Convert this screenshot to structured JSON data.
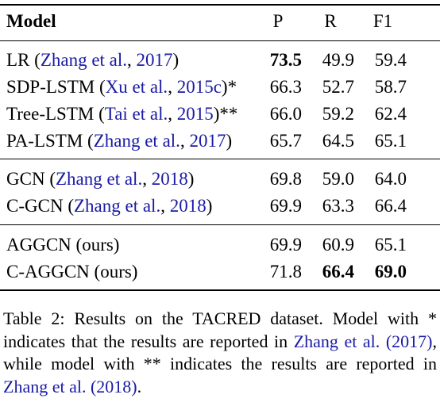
{
  "table": {
    "headers": {
      "model": "Model",
      "p": "P",
      "r": "R",
      "f1": "F1"
    },
    "rows": [
      {
        "name": "LR",
        "cite_open": " (",
        "cite_author": "Zhang et al.",
        "cite_sep": ", ",
        "cite_year": "2017",
        "cite_close": ")",
        "p": "73.5",
        "r": "49.9",
        "f1": "59.4"
      },
      {
        "name": "SDP-LSTM",
        "cite_open": " (",
        "cite_author": "Xu et al.",
        "cite_sep": ", ",
        "cite_year": "2015c",
        "cite_close": ")*",
        "p": "66.3",
        "r": "52.7",
        "f1": "58.7"
      },
      {
        "name": "Tree-LSTM",
        "cite_open": " (",
        "cite_author": "Tai et al.",
        "cite_sep": ", ",
        "cite_year": "2015",
        "cite_close": ")**",
        "p": "66.0",
        "r": "59.2",
        "f1": "62.4"
      },
      {
        "name": "PA-LSTM",
        "cite_open": " (",
        "cite_author": "Zhang et al.",
        "cite_sep": ", ",
        "cite_year": "2017",
        "cite_close": ")",
        "p": "65.7",
        "r": "64.5",
        "f1": "65.1"
      },
      {
        "name": "GCN",
        "cite_open": " (",
        "cite_author": "Zhang et al.",
        "cite_sep": ", ",
        "cite_year": "2018",
        "cite_close": ")",
        "p": "69.8",
        "r": "59.0",
        "f1": "64.0"
      },
      {
        "name": "C-GCN",
        "cite_open": " (",
        "cite_author": "Zhang et al.",
        "cite_sep": ", ",
        "cite_year": "2018",
        "cite_close": ")",
        "p": "69.9",
        "r": "63.3",
        "f1": "66.4"
      },
      {
        "name": "AGGCN (ours)",
        "p": "69.9",
        "r": "60.9",
        "f1": "65.1"
      },
      {
        "name": "C-AGGCN (ours)",
        "p": "71.8",
        "r": "66.4",
        "f1": "69.0"
      }
    ]
  },
  "caption": {
    "part1": "Table 2: Results on the TACRED dataset. Model with * indicates that the results are reported in ",
    "cite1_author": "Zhang et al.",
    "cite1_year": "(2017)",
    "part2": ", while model with ** indicates the results are reported in ",
    "cite2_author": "Zhang et al.",
    "cite2_year": "(2018)",
    "part3": "."
  }
}
